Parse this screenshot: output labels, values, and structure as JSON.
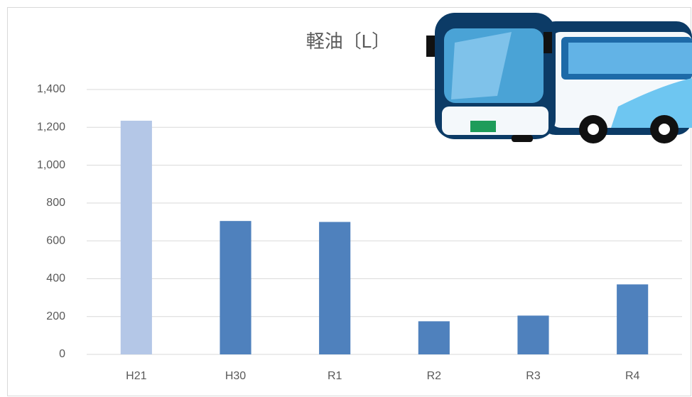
{
  "chart_data": {
    "type": "bar",
    "title": "軽油〔L〕",
    "categories": [
      "H21",
      "H30",
      "R1",
      "R2",
      "R3",
      "R4"
    ],
    "values": [
      1235,
      705,
      700,
      175,
      205,
      370
    ],
    "colors": [
      "#b4c7e7",
      "#4f81bd",
      "#4f81bd",
      "#4f81bd",
      "#4f81bd",
      "#4f81bd"
    ],
    "ylim": [
      0,
      1400
    ],
    "yticks": [
      0,
      200,
      400,
      600,
      800,
      {
        "value": 1000,
        "label": "1,000"
      },
      {
        "value": 1200,
        "label": "1,200"
      },
      {
        "value": 1400,
        "label": "1,400"
      }
    ],
    "grid": true
  }
}
